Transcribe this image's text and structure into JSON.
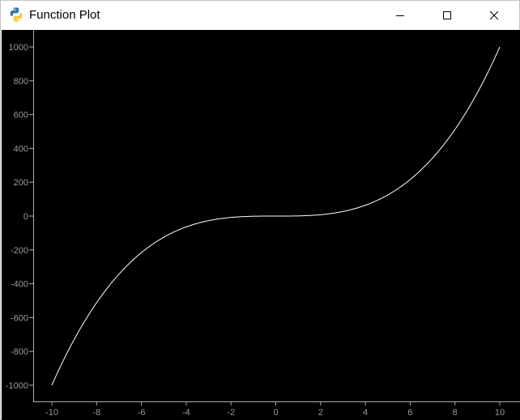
{
  "window": {
    "title": "Function Plot",
    "icon": "python-icon",
    "controls": [
      "minimize-icon",
      "maximize-icon",
      "close-icon"
    ]
  },
  "colors": {
    "plot_background": "#000000",
    "curve": "#ffffff",
    "axis": "#b0b0b0",
    "tick_text": "#9a9a9a"
  },
  "chart_data": {
    "type": "line",
    "function": "y = x^3",
    "xlim": [
      -10,
      10
    ],
    "ylim": [
      -1000,
      1000
    ],
    "x_ticks": [
      -10,
      -8,
      -6,
      -4,
      -2,
      0,
      2,
      4,
      6,
      8,
      10
    ],
    "y_ticks": [
      1000,
      800,
      600,
      400,
      200,
      0,
      -200,
      -400,
      -600,
      -800,
      -1000
    ],
    "x_tick_labels": [
      "-10",
      "-8",
      "-6",
      "-4",
      "-2",
      "0",
      "2",
      "4",
      "6",
      "8",
      "10"
    ],
    "y_tick_labels": [
      "1000",
      "800",
      "600",
      "400",
      "200",
      "0",
      "-200",
      "-400",
      "-600",
      "-800",
      "-1000"
    ],
    "series": [
      {
        "x": [
          -10,
          -9,
          -8,
          -7,
          -6,
          -5,
          -4,
          -3,
          -2,
          -1,
          0,
          1,
          2,
          3,
          4,
          5,
          6,
          7,
          8,
          9,
          10
        ],
        "y": [
          -1000,
          -729,
          -512,
          -343,
          -216,
          -125,
          -64,
          -27,
          -8,
          -1,
          0,
          1,
          8,
          27,
          64,
          125,
          216,
          343,
          512,
          729,
          1000
        ]
      }
    ],
    "grid": false,
    "title": "",
    "xlabel": "",
    "ylabel": ""
  }
}
